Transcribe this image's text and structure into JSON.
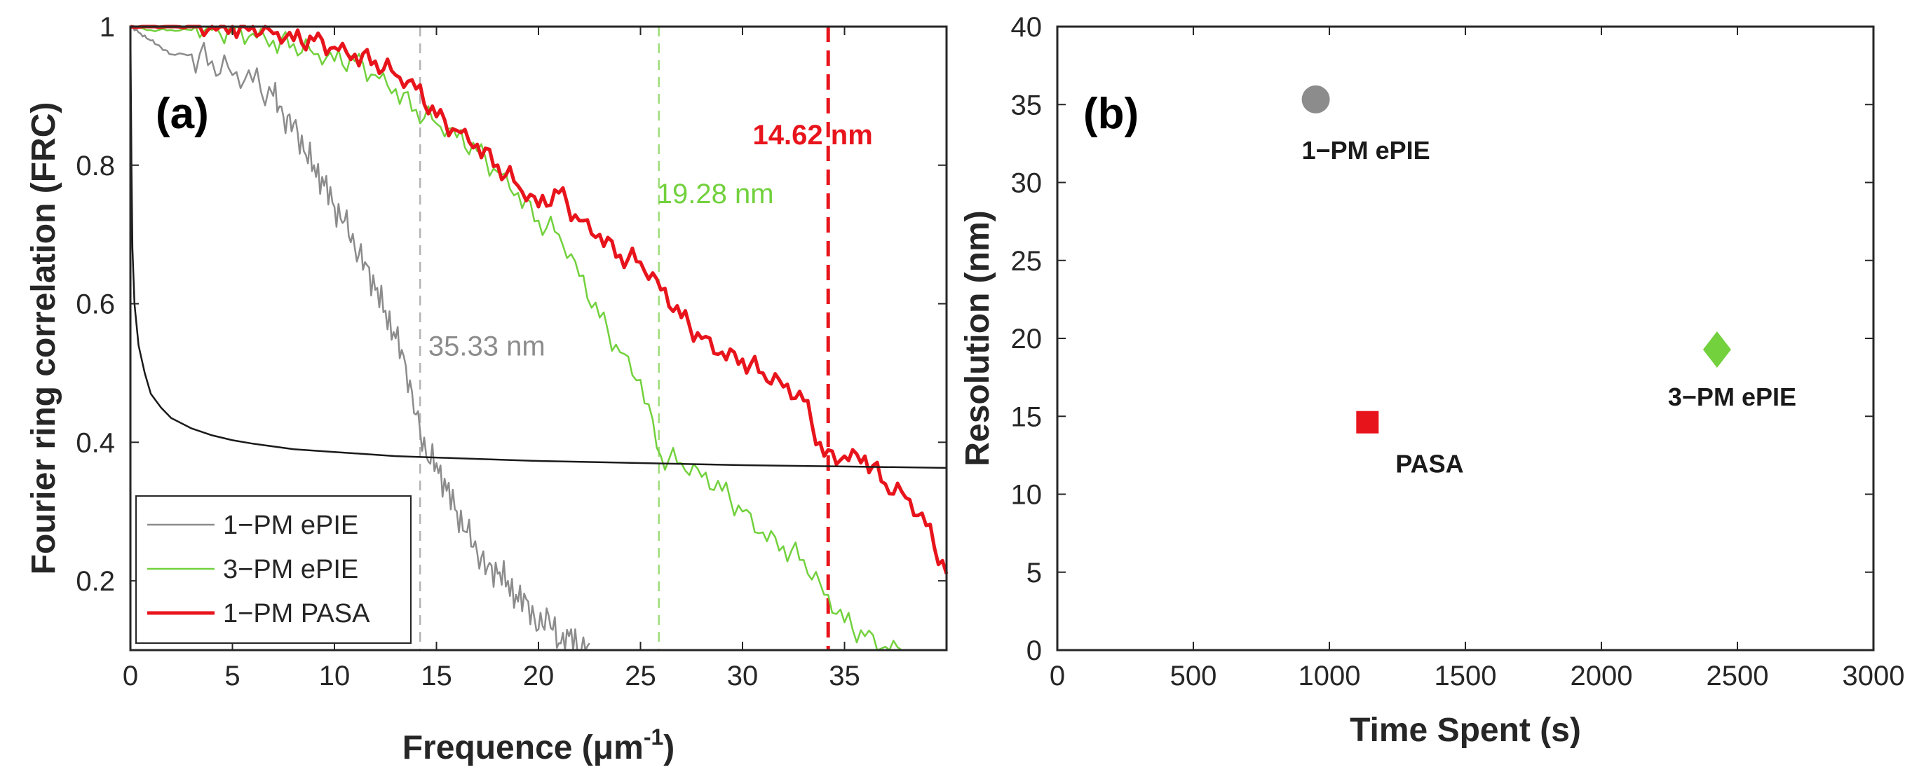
{
  "colors": {
    "gray": "#8c8c8c",
    "green": "#72d13d",
    "red": "#e8141c",
    "threshold": "#1a1a1a",
    "axis": "#262626"
  },
  "chart_data": [
    {
      "panel": "(a)",
      "type": "line",
      "xlabel": "Frequence (μm",
      "xlabel_sup": "-1",
      "xlabel_close": ")",
      "ylabel": "Fourier ring correlation (FRC)",
      "xlim": [
        0,
        40
      ],
      "ylim": [
        0.1,
        1.0
      ],
      "xticks": [
        0,
        5,
        10,
        15,
        20,
        25,
        30,
        35
      ],
      "yticks": [
        0.2,
        0.4,
        0.6,
        0.8,
        1
      ],
      "ytick_labels": [
        "0.2",
        "0.4",
        "0.6",
        "0.8",
        "1"
      ],
      "series": [
        {
          "name": "1−PM ePIE",
          "color": "#8c8c8c",
          "x": [
            0,
            0.5,
            1,
            1.5,
            2,
            3,
            4,
            5,
            6,
            7,
            7.5,
            8,
            8.5,
            9,
            9.5,
            10,
            10.5,
            11,
            11.5,
            12,
            12.5,
            13,
            13.5,
            14,
            14.5,
            15,
            15.5,
            16,
            16.5,
            17,
            17.5,
            18,
            18.5,
            19,
            19.5,
            20,
            20.5,
            21,
            21.5,
            22,
            22.5
          ],
          "y": [
            1.0,
            0.99,
            0.98,
            0.97,
            0.96,
            0.96,
            0.95,
            0.93,
            0.92,
            0.9,
            0.87,
            0.86,
            0.82,
            0.8,
            0.77,
            0.74,
            0.72,
            0.68,
            0.66,
            0.62,
            0.59,
            0.55,
            0.51,
            0.44,
            0.38,
            0.37,
            0.33,
            0.3,
            0.27,
            0.24,
            0.22,
            0.21,
            0.2,
            0.17,
            0.17,
            0.13,
            0.15,
            0.11,
            0.12,
            0.1,
            0.11
          ]
        },
        {
          "name": "3−PM ePIE",
          "color": "#72d13d",
          "x": [
            0,
            1,
            2,
            3,
            4,
            5,
            6,
            7,
            8,
            9,
            10,
            11,
            12,
            13,
            14,
            15,
            16,
            17,
            18,
            19,
            20,
            21,
            22,
            23,
            24,
            25,
            26,
            27,
            28,
            29,
            30,
            31,
            32,
            33,
            34,
            35,
            36,
            37,
            38
          ],
          "y": [
            1.0,
            0.995,
            0.995,
            0.995,
            0.995,
            0.99,
            0.99,
            0.98,
            0.975,
            0.96,
            0.95,
            0.95,
            0.93,
            0.91,
            0.88,
            0.86,
            0.84,
            0.82,
            0.79,
            0.76,
            0.72,
            0.7,
            0.64,
            0.58,
            0.53,
            0.49,
            0.38,
            0.37,
            0.35,
            0.33,
            0.3,
            0.27,
            0.25,
            0.23,
            0.18,
            0.14,
            0.12,
            0.105,
            0.1
          ]
        },
        {
          "name": "1−PM PASA",
          "color": "#e8141c",
          "x": [
            0,
            1,
            2,
            3,
            4,
            5,
            6,
            7,
            8,
            9,
            10,
            11,
            12,
            13,
            14,
            15,
            16,
            17,
            18,
            19,
            20,
            21,
            22,
            23,
            24,
            25,
            26,
            27,
            28,
            29,
            30,
            31,
            32,
            33,
            34,
            35,
            36,
            37,
            38,
            39,
            40
          ],
          "y": [
            1.0,
            1.0,
            1.0,
            1.0,
            1.0,
            1.0,
            1.0,
            0.99,
            0.98,
            0.98,
            0.97,
            0.96,
            0.95,
            0.93,
            0.91,
            0.87,
            0.85,
            0.83,
            0.8,
            0.77,
            0.74,
            0.76,
            0.72,
            0.7,
            0.67,
            0.66,
            0.62,
            0.58,
            0.55,
            0.53,
            0.52,
            0.5,
            0.48,
            0.46,
            0.38,
            0.38,
            0.38,
            0.34,
            0.32,
            0.28,
            0.21
          ]
        },
        {
          "name": "threshold",
          "color": "#1a1a1a",
          "x": [
            0,
            0.05,
            0.1,
            0.2,
            0.4,
            0.7,
            1,
            1.5,
            2,
            3,
            4,
            5,
            6,
            8,
            10,
            13,
            16,
            20,
            25,
            30,
            35,
            40
          ],
          "y": [
            1.0,
            0.8,
            0.68,
            0.6,
            0.54,
            0.5,
            0.47,
            0.45,
            0.435,
            0.42,
            0.41,
            0.403,
            0.398,
            0.39,
            0.386,
            0.38,
            0.377,
            0.373,
            0.37,
            0.367,
            0.365,
            0.363
          ]
        }
      ],
      "vlines": [
        {
          "x": 14.2,
          "color": "#b4b4b4",
          "label": "35.33 nm",
          "label_x": 14.6,
          "label_y": 0.525
        },
        {
          "x": 25.9,
          "color": "#9fdc7a",
          "label": "19.28 nm",
          "label_x": 25.8,
          "label_y": 0.745
        },
        {
          "x": 34.2,
          "color": "#e8141c",
          "label": "14.62 nm",
          "label_x": 30.5,
          "label_y": 0.83
        }
      ],
      "legend": [
        "1−PM ePIE",
        "3−PM ePIE",
        "1−PM PASA"
      ],
      "legend_position": "bottom-left"
    },
    {
      "panel": "(b)",
      "type": "scatter",
      "xlabel": "Time Spent (s)",
      "ylabel": "Resolution (nm)",
      "xlim": [
        0,
        3000
      ],
      "ylim": [
        0,
        40
      ],
      "xticks": [
        0,
        500,
        1000,
        1500,
        2000,
        2500,
        3000
      ],
      "yticks": [
        0,
        5,
        10,
        15,
        20,
        25,
        30,
        35,
        40
      ],
      "points": [
        {
          "label": "1−PM ePIE",
          "x": 950,
          "y": 35.33,
          "marker": "circle",
          "color": "#8c8c8c"
        },
        {
          "label": "PASA",
          "x": 1140,
          "y": 14.62,
          "marker": "square",
          "color": "#e8141c"
        },
        {
          "label": "3−PM ePIE",
          "x": 2425,
          "y": 19.28,
          "marker": "diamond",
          "color": "#72d13d"
        }
      ]
    }
  ]
}
